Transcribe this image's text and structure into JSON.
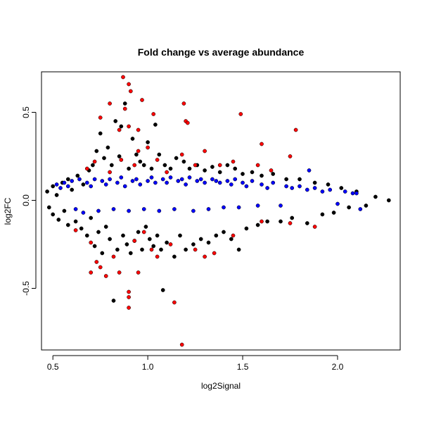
{
  "chart_data": {
    "type": "scatter",
    "title": "Fold change vs average abundance",
    "xlabel": "log2Signal",
    "ylabel": "log2FC",
    "xlim": [
      0.44,
      2.33
    ],
    "ylim": [
      -0.85,
      0.73
    ],
    "xticks": [
      {
        "value": 0.5,
        "label": "0.5"
      },
      {
        "value": 1.0,
        "label": "1.0"
      },
      {
        "value": 1.5,
        "label": "1.5"
      },
      {
        "value": 2.0,
        "label": "2.0"
      }
    ],
    "yticks": [
      {
        "value": -0.5,
        "label": "-0.5"
      },
      {
        "value": 0.0,
        "label": "0.0"
      },
      {
        "value": 0.5,
        "label": "0.5"
      }
    ],
    "grid": false,
    "legend": "none",
    "series": [
      {
        "color": "#000000",
        "points": [
          [
            0.47,
            0.05
          ],
          [
            0.48,
            -0.04
          ],
          [
            0.5,
            0.08
          ],
          [
            0.5,
            -0.08
          ],
          [
            0.52,
            0.03
          ],
          [
            0.53,
            -0.11
          ],
          [
            0.55,
            0.1
          ],
          [
            0.56,
            -0.06
          ],
          [
            0.58,
            0.12
          ],
          [
            0.58,
            -0.14
          ],
          [
            0.6,
            0.06
          ],
          [
            0.62,
            -0.12
          ],
          [
            0.63,
            0.14
          ],
          [
            0.65,
            -0.16
          ],
          [
            0.66,
            0.09
          ],
          [
            0.68,
            -0.2
          ],
          [
            0.69,
            0.17
          ],
          [
            0.7,
            -0.1
          ],
          [
            0.71,
            0.2
          ],
          [
            0.72,
            -0.26
          ],
          [
            0.73,
            0.28
          ],
          [
            0.74,
            -0.18
          ],
          [
            0.75,
            0.38
          ],
          [
            0.76,
            -0.3
          ],
          [
            0.77,
            0.24
          ],
          [
            0.78,
            -0.15
          ],
          [
            0.79,
            0.3
          ],
          [
            0.8,
            -0.22
          ],
          [
            0.81,
            0.2
          ],
          [
            0.82,
            -0.57
          ],
          [
            0.83,
            0.45
          ],
          [
            0.84,
            -0.28
          ],
          [
            0.85,
            0.25
          ],
          [
            0.86,
            0.42
          ],
          [
            0.87,
            -0.2
          ],
          [
            0.88,
            0.55
          ],
          [
            0.89,
            -0.25
          ],
          [
            0.9,
            0.18
          ],
          [
            0.91,
            -0.3
          ],
          [
            0.92,
            0.35
          ],
          [
            0.93,
            -0.23
          ],
          [
            0.94,
            0.26
          ],
          [
            0.95,
            -0.18
          ],
          [
            0.96,
            0.22
          ],
          [
            0.97,
            -0.28
          ],
          [
            0.98,
            0.2
          ],
          [
            0.99,
            -0.15
          ],
          [
            1.0,
            0.33
          ],
          [
            1.01,
            -0.22
          ],
          [
            1.02,
            0.18
          ],
          [
            1.03,
            -0.26
          ],
          [
            1.04,
            0.43
          ],
          [
            1.05,
            -0.2
          ],
          [
            1.06,
            0.26
          ],
          [
            1.07,
            -0.28
          ],
          [
            1.08,
            -0.51
          ],
          [
            1.09,
            0.2
          ],
          [
            1.1,
            -0.24
          ],
          [
            1.12,
            0.18
          ],
          [
            1.14,
            -0.32
          ],
          [
            1.15,
            0.24
          ],
          [
            1.17,
            -0.2
          ],
          [
            1.19,
            0.22
          ],
          [
            1.2,
            -0.28
          ],
          [
            1.22,
            0.18
          ],
          [
            1.24,
            -0.25
          ],
          [
            1.26,
            0.2
          ],
          [
            1.28,
            -0.22
          ],
          [
            1.3,
            0.17
          ],
          [
            1.32,
            -0.24
          ],
          [
            1.34,
            0.19
          ],
          [
            1.36,
            -0.2
          ],
          [
            1.38,
            0.16
          ],
          [
            1.4,
            -0.18
          ],
          [
            1.42,
            0.2
          ],
          [
            1.44,
            -0.22
          ],
          [
            1.46,
            0.18
          ],
          [
            1.48,
            -0.28
          ],
          [
            1.5,
            0.15
          ],
          [
            1.52,
            -0.16
          ],
          [
            1.55,
            0.16
          ],
          [
            1.58,
            -0.14
          ],
          [
            1.6,
            0.14
          ],
          [
            1.63,
            -0.12
          ],
          [
            1.66,
            0.15
          ],
          [
            1.7,
            -0.12
          ],
          [
            1.73,
            0.12
          ],
          [
            1.76,
            -0.1
          ],
          [
            1.8,
            0.12
          ],
          [
            1.84,
            -0.13
          ],
          [
            1.88,
            0.1
          ],
          [
            1.92,
            -0.08
          ],
          [
            1.95,
            0.09
          ],
          [
            1.98,
            -0.07
          ],
          [
            2.02,
            0.07
          ],
          [
            2.06,
            -0.04
          ],
          [
            2.1,
            0.05
          ],
          [
            2.15,
            -0.03
          ],
          [
            2.2,
            0.02
          ],
          [
            2.27,
            0.0
          ]
        ]
      },
      {
        "color": "#0000ff",
        "points": [
          [
            0.52,
            0.09
          ],
          [
            0.54,
            0.07
          ],
          [
            0.56,
            0.1
          ],
          [
            0.58,
            0.08
          ],
          [
            0.6,
            0.11
          ],
          [
            0.62,
            -0.05
          ],
          [
            0.64,
            0.12
          ],
          [
            0.66,
            -0.07
          ],
          [
            0.68,
            0.1
          ],
          [
            0.7,
            0.08
          ],
          [
            0.72,
            0.12
          ],
          [
            0.74,
            -0.06
          ],
          [
            0.76,
            0.11
          ],
          [
            0.78,
            0.09
          ],
          [
            0.8,
            0.12
          ],
          [
            0.82,
            -0.05
          ],
          [
            0.84,
            0.1
          ],
          [
            0.86,
            0.13
          ],
          [
            0.88,
            0.08
          ],
          [
            0.9,
            -0.06
          ],
          [
            0.92,
            0.11
          ],
          [
            0.94,
            0.12
          ],
          [
            0.96,
            0.09
          ],
          [
            0.98,
            -0.05
          ],
          [
            1.0,
            0.11
          ],
          [
            1.02,
            0.13
          ],
          [
            1.04,
            0.1
          ],
          [
            1.06,
            -0.06
          ],
          [
            1.08,
            0.12
          ],
          [
            1.1,
            0.1
          ],
          [
            1.12,
            0.13
          ],
          [
            1.14,
            -0.05
          ],
          [
            1.16,
            0.11
          ],
          [
            1.18,
            0.12
          ],
          [
            1.2,
            0.09
          ],
          [
            1.22,
            0.13
          ],
          [
            1.24,
            -0.06
          ],
          [
            1.26,
            0.11
          ],
          [
            1.28,
            0.12
          ],
          [
            1.3,
            0.1
          ],
          [
            1.32,
            -0.05
          ],
          [
            1.34,
            0.12
          ],
          [
            1.36,
            0.11
          ],
          [
            1.38,
            0.1
          ],
          [
            1.4,
            -0.04
          ],
          [
            1.42,
            0.11
          ],
          [
            1.44,
            0.09
          ],
          [
            1.46,
            0.12
          ],
          [
            1.48,
            -0.04
          ],
          [
            1.5,
            0.1
          ],
          [
            1.52,
            0.08
          ],
          [
            1.55,
            0.11
          ],
          [
            1.58,
            -0.03
          ],
          [
            1.6,
            0.09
          ],
          [
            1.63,
            0.07
          ],
          [
            1.66,
            0.1
          ],
          [
            1.7,
            -0.03
          ],
          [
            1.73,
            0.08
          ],
          [
            1.76,
            0.07
          ],
          [
            1.8,
            0.08
          ],
          [
            1.84,
            0.06
          ],
          [
            1.88,
            0.07
          ],
          [
            1.92,
            0.05
          ],
          [
            1.96,
            0.06
          ],
          [
            2.0,
            -0.02
          ],
          [
            2.04,
            0.05
          ],
          [
            2.08,
            0.04
          ],
          [
            2.1,
            0.04
          ],
          [
            2.12,
            -0.05
          ],
          [
            1.85,
            0.17
          ]
        ]
      },
      {
        "color": "#ff0000",
        "points": [
          [
            0.87,
            0.7
          ],
          [
            0.9,
            0.66
          ],
          [
            0.91,
            0.62
          ],
          [
            0.8,
            0.55
          ],
          [
            0.88,
            0.52
          ],
          [
            0.97,
            0.57
          ],
          [
            1.03,
            0.49
          ],
          [
            1.19,
            0.55
          ],
          [
            1.49,
            0.49
          ],
          [
            0.75,
            0.47
          ],
          [
            1.2,
            0.45
          ],
          [
            1.21,
            0.44
          ],
          [
            1.78,
            0.4
          ],
          [
            0.85,
            0.4
          ],
          [
            0.9,
            0.42
          ],
          [
            0.95,
            0.4
          ],
          [
            1.0,
            0.3
          ],
          [
            1.6,
            0.32
          ],
          [
            1.75,
            0.25
          ],
          [
            0.72,
            0.22
          ],
          [
            0.95,
            0.28
          ],
          [
            1.18,
            0.26
          ],
          [
            1.3,
            0.28
          ],
          [
            1.58,
            0.2
          ],
          [
            0.62,
            -0.17
          ],
          [
            0.7,
            -0.24
          ],
          [
            0.73,
            -0.35
          ],
          [
            0.75,
            -0.38
          ],
          [
            0.7,
            -0.41
          ],
          [
            0.78,
            -0.43
          ],
          [
            0.85,
            -0.41
          ],
          [
            0.95,
            -0.41
          ],
          [
            0.82,
            -0.32
          ],
          [
            0.9,
            -0.52
          ],
          [
            0.9,
            -0.55
          ],
          [
            0.9,
            -0.61
          ],
          [
            1.14,
            -0.58
          ],
          [
            1.18,
            -0.82
          ],
          [
            1.05,
            -0.32
          ],
          [
            1.3,
            -0.32
          ],
          [
            1.25,
            -0.28
          ],
          [
            1.35,
            -0.3
          ],
          [
            0.93,
            -0.23
          ],
          [
            1.02,
            -0.28
          ],
          [
            1.45,
            -0.2
          ],
          [
            1.6,
            -0.12
          ],
          [
            1.75,
            -0.13
          ],
          [
            1.88,
            -0.15
          ],
          [
            0.98,
            -0.18
          ],
          [
            1.12,
            -0.25
          ],
          [
            0.86,
            0.23
          ],
          [
            0.93,
            0.2
          ],
          [
            1.05,
            0.23
          ],
          [
            1.25,
            0.2
          ],
          [
            1.38,
            0.2
          ],
          [
            1.45,
            0.22
          ],
          [
            0.68,
            0.18
          ],
          [
            0.8,
            0.16
          ],
          [
            1.1,
            0.16
          ],
          [
            1.65,
            0.17
          ]
        ]
      }
    ]
  }
}
